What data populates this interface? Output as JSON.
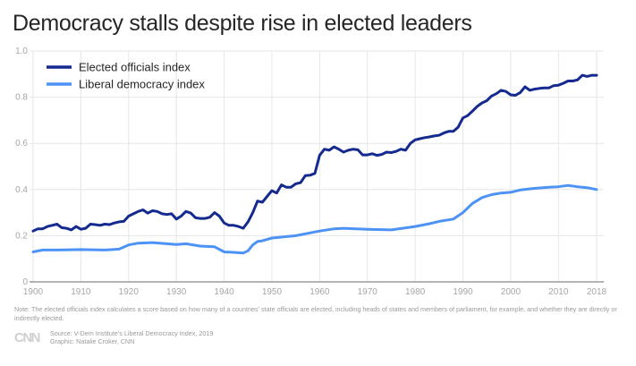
{
  "title": "Democracy stalls despite rise in elected leaders",
  "note": "Note: The elected officials index calculates a score based on how many of a countries' state officials are elected, including heads of states and members of parliament, for example, and whether they are directly or indirectly elected.",
  "footer": {
    "logo": "CNN",
    "source": "Source: V-Dem Institute's Liberal Democracy Index, 2019",
    "graphic": "Graphic: Natalie Croker, CNN"
  },
  "chart_data": {
    "type": "line",
    "title": "Democracy stalls despite rise in elected leaders",
    "xlabel": "",
    "ylabel": "",
    "xlim": [
      1900,
      2018
    ],
    "ylim": [
      0,
      1.0
    ],
    "grid": true,
    "legend_position": "top-left",
    "x_ticks": [
      "1900",
      "1910",
      "1920",
      "1930",
      "1940",
      "1950",
      "1960",
      "1970",
      "1980",
      "1990",
      "2000",
      "2010",
      "2018"
    ],
    "y_ticks": [
      "0",
      "0.2",
      "0.4",
      "0.6",
      "0.8",
      "1.0"
    ],
    "y_tick_values": [
      0,
      0.2,
      0.4,
      0.6,
      0.8,
      1.0
    ],
    "x_tick_values": [
      1900,
      1910,
      1920,
      1930,
      1940,
      1950,
      1960,
      1970,
      1980,
      1990,
      2000,
      2010,
      2018
    ],
    "series": [
      {
        "name": "Elected officials index",
        "color": "#152a8f",
        "x": [
          1900,
          1901,
          1902,
          1903,
          1904,
          1905,
          1906,
          1907,
          1908,
          1909,
          1910,
          1911,
          1912,
          1913,
          1914,
          1915,
          1916,
          1917,
          1918,
          1919,
          1920,
          1921,
          1922,
          1923,
          1924,
          1925,
          1926,
          1927,
          1928,
          1929,
          1930,
          1931,
          1932,
          1933,
          1934,
          1935,
          1936,
          1937,
          1938,
          1939,
          1940,
          1941,
          1942,
          1943,
          1944,
          1945,
          1946,
          1947,
          1948,
          1949,
          1950,
          1951,
          1952,
          1953,
          1954,
          1955,
          1956,
          1957,
          1958,
          1959,
          1960,
          1961,
          1962,
          1963,
          1964,
          1965,
          1966,
          1967,
          1968,
          1969,
          1970,
          1971,
          1972,
          1973,
          1974,
          1975,
          1976,
          1977,
          1978,
          1979,
          1980,
          1981,
          1982,
          1983,
          1984,
          1985,
          1986,
          1987,
          1988,
          1989,
          1990,
          1991,
          1992,
          1993,
          1994,
          1995,
          1996,
          1997,
          1998,
          1999,
          2000,
          2001,
          2002,
          2003,
          2004,
          2005,
          2006,
          2007,
          2008,
          2009,
          2010,
          2011,
          2012,
          2013,
          2014,
          2015,
          2016,
          2017,
          2018
        ],
        "values": [
          0.22,
          0.23,
          0.23,
          0.24,
          0.245,
          0.25,
          0.235,
          0.232,
          0.225,
          0.24,
          0.228,
          0.232,
          0.25,
          0.248,
          0.245,
          0.25,
          0.248,
          0.255,
          0.26,
          0.262,
          0.285,
          0.295,
          0.305,
          0.312,
          0.298,
          0.308,
          0.305,
          0.295,
          0.292,
          0.295,
          0.272,
          0.285,
          0.305,
          0.298,
          0.278,
          0.275,
          0.275,
          0.28,
          0.3,
          0.285,
          0.255,
          0.245,
          0.245,
          0.24,
          0.232,
          0.26,
          0.3,
          0.35,
          0.345,
          0.37,
          0.395,
          0.385,
          0.42,
          0.41,
          0.41,
          0.425,
          0.43,
          0.46,
          0.462,
          0.47,
          0.548,
          0.575,
          0.57,
          0.585,
          0.575,
          0.562,
          0.57,
          0.575,
          0.572,
          0.55,
          0.55,
          0.555,
          0.548,
          0.552,
          0.562,
          0.56,
          0.565,
          0.575,
          0.57,
          0.6,
          0.615,
          0.62,
          0.625,
          0.628,
          0.632,
          0.635,
          0.645,
          0.652,
          0.652,
          0.67,
          0.71,
          0.72,
          0.74,
          0.76,
          0.775,
          0.785,
          0.805,
          0.815,
          0.83,
          0.825,
          0.81,
          0.808,
          0.82,
          0.845,
          0.83,
          0.835,
          0.838,
          0.84,
          0.84,
          0.85,
          0.852,
          0.86,
          0.87,
          0.87,
          0.875,
          0.895,
          0.89,
          0.895,
          0.895
        ]
      },
      {
        "name": "Liberal democracy index",
        "color": "#4d93f5",
        "x": [
          1900,
          1902,
          1905,
          1910,
          1915,
          1918,
          1920,
          1922,
          1925,
          1928,
          1930,
          1932,
          1935,
          1938,
          1940,
          1942,
          1944,
          1945,
          1946,
          1947,
          1948,
          1950,
          1955,
          1960,
          1963,
          1965,
          1970,
          1975,
          1980,
          1983,
          1985,
          1988,
          1990,
          1992,
          1994,
          1996,
          1998,
          2000,
          2002,
          2005,
          2008,
          2010,
          2012,
          2014,
          2016,
          2018
        ],
        "values": [
          0.13,
          0.138,
          0.138,
          0.14,
          0.138,
          0.142,
          0.16,
          0.168,
          0.17,
          0.165,
          0.162,
          0.165,
          0.155,
          0.152,
          0.13,
          0.128,
          0.125,
          0.135,
          0.16,
          0.175,
          0.178,
          0.19,
          0.2,
          0.22,
          0.23,
          0.232,
          0.228,
          0.225,
          0.24,
          0.252,
          0.262,
          0.272,
          0.3,
          0.34,
          0.365,
          0.378,
          0.385,
          0.388,
          0.398,
          0.405,
          0.41,
          0.412,
          0.418,
          0.412,
          0.408,
          0.4
        ]
      }
    ]
  }
}
